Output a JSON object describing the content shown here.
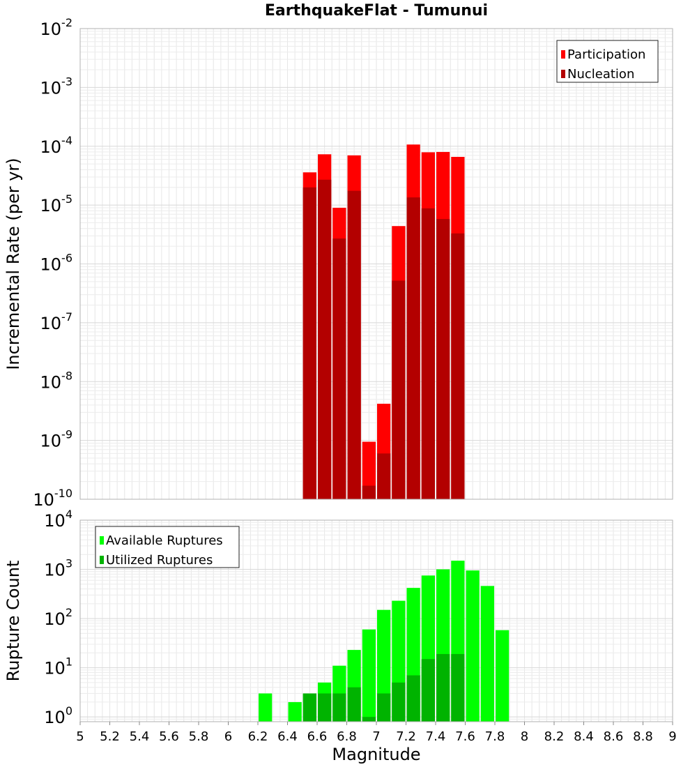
{
  "title": "EarthquakeFlat - Tumunui",
  "xlabel": "Magnitude",
  "xlim": [
    5,
    9
  ],
  "xticks": [
    "5",
    "5.2",
    "5.4",
    "5.6",
    "5.8",
    "6",
    "6.2",
    "6.4",
    "6.6",
    "6.8",
    "7",
    "7.2",
    "7.4",
    "7.6",
    "7.8",
    "8",
    "8.2",
    "8.4",
    "8.6",
    "8.8",
    "9"
  ],
  "colors": {
    "participation": "#ff0000",
    "nucleation": "#b30000",
    "available": "#00ff00",
    "utilized": "#00b300",
    "grid": "#e6e6e6",
    "frame": "#b0b0b0"
  },
  "chart_data": [
    {
      "type": "bar",
      "ylabel": "Incremental Rate (per yr)",
      "yscale": "log",
      "ylim": [
        1e-10,
        0.01
      ],
      "yticks": [
        {
          "base": "10",
          "exp": "-10"
        },
        {
          "base": "10",
          "exp": "-9"
        },
        {
          "base": "10",
          "exp": "-8"
        },
        {
          "base": "10",
          "exp": "-7"
        },
        {
          "base": "10",
          "exp": "-6"
        },
        {
          "base": "10",
          "exp": "-5"
        },
        {
          "base": "10",
          "exp": "-4"
        },
        {
          "base": "10",
          "exp": "-3"
        },
        {
          "base": "10",
          "exp": "-2"
        }
      ],
      "legend": {
        "placement": "top-right",
        "entries": [
          "Participation",
          "Nucleation"
        ]
      },
      "bar_width": 0.1,
      "x": [
        6.55,
        6.65,
        6.75,
        6.85,
        6.95,
        7.05,
        7.15,
        7.25,
        7.35,
        7.45,
        7.55
      ],
      "series": [
        {
          "name": "Participation",
          "values": [
            3.6e-05,
            7.3e-05,
            9e-06,
            7e-05,
            9.5e-10,
            4.2e-09,
            4.4e-06,
            0.000107,
            7.9e-05,
            8e-05,
            6.6e-05
          ]
        },
        {
          "name": "Nucleation",
          "values": [
            2e-05,
            2.7e-05,
            2.7e-06,
            1.75e-05,
            1.7e-10,
            6e-10,
            5.2e-07,
            1.35e-05,
            8.8e-06,
            5.8e-06,
            3.3e-06
          ]
        }
      ]
    },
    {
      "type": "bar",
      "ylabel": "Rupture Count",
      "yscale": "log",
      "ylim": [
        0.8,
        10000
      ],
      "yticks": [
        {
          "base": "10",
          "exp": "0"
        },
        {
          "base": "10",
          "exp": "1"
        },
        {
          "base": "10",
          "exp": "2"
        },
        {
          "base": "10",
          "exp": "3"
        },
        {
          "base": "10",
          "exp": "4"
        }
      ],
      "legend": {
        "placement": "top-left",
        "entries": [
          "Available Ruptures",
          "Utilized Ruptures"
        ]
      },
      "bar_width": 0.1,
      "x": [
        6.25,
        6.35,
        6.45,
        6.55,
        6.65,
        6.75,
        6.85,
        6.95,
        7.05,
        7.15,
        7.25,
        7.35,
        7.45,
        7.55,
        7.65,
        7.75,
        7.85
      ],
      "series": [
        {
          "name": "Available Ruptures",
          "values": [
            3,
            0,
            2,
            3,
            5,
            11,
            23,
            60,
            150,
            230,
            420,
            750,
            1000,
            1500,
            950,
            460,
            58
          ]
        },
        {
          "name": "Utilized Ruptures",
          "values": [
            0,
            0,
            0,
            3,
            3,
            3,
            4,
            1,
            3,
            5,
            7,
            15,
            19,
            19,
            0,
            0,
            0
          ]
        }
      ]
    }
  ]
}
